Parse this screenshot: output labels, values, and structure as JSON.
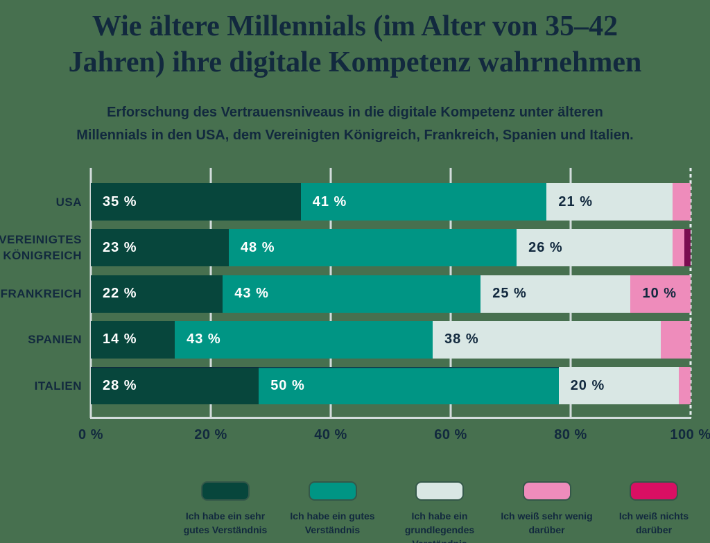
{
  "chart_data": {
    "type": "stacked_bar_horizontal",
    "title": "Wie ältere Millennials (im Alter von 35–42 Jahren) ihre digitale Kompetenz wahrnehmen",
    "title_lines": [
      "Wie ältere Millennials (im Alter von 35–42",
      "Jahren) ihre digitale Kompetenz wahrnehmen"
    ],
    "subtitle": "Erforschung des Vertrauensniveaus in die digitale Kompetenz unter älteren Millennials in den USA, dem Vereinigten Königreich, Frankreich, Spanien und Italien.",
    "subtitle_lines": [
      "Erforschung des Vertrauensniveaus in die digitale Kompetenz unter älteren",
      "Millennials in den USA, dem Vereinigten Königreich, Frankreich, Spanien und Italien."
    ],
    "x_axis": {
      "min": 0,
      "max": 100,
      "tick_values": [
        0,
        20,
        40,
        60,
        80,
        100
      ],
      "ticks": [
        "0 %",
        "20 %",
        "40 %",
        "60 %",
        "80 %",
        "100 %"
      ]
    },
    "categories": [
      "USA",
      "VEREINIGTES KÖNIGREICH",
      "FRANKREICH",
      "SPANIEN",
      "ITALIEN"
    ],
    "legend": [
      {
        "label": "Ich habe ein sehr gutes Verständnis",
        "color": "#07463c"
      },
      {
        "label": "Ich habe ein gutes Verständnis",
        "color": "#009584"
      },
      {
        "label": "Ich habe ein grundlegendes Verständnis",
        "color": "#d9e7e4"
      },
      {
        "label": "Ich weiß sehr wenig darüber",
        "color": "#ee8cbb"
      },
      {
        "label": "Ich weiß nichts darüber",
        "color": "#d90f63"
      }
    ],
    "series": [
      {
        "name": "Ich habe ein sehr gutes Verständnis",
        "values": [
          35,
          23,
          22,
          14,
          28
        ]
      },
      {
        "name": "Ich habe ein gutes Verständnis",
        "values": [
          41,
          48,
          43,
          43,
          50
        ]
      },
      {
        "name": "Ich habe ein grundlegendes Verständnis",
        "values": [
          21,
          26,
          25,
          38,
          20
        ]
      },
      {
        "name": "Ich weiß sehr wenig darüber",
        "values": [
          3,
          2,
          10,
          5,
          2
        ]
      },
      {
        "name": "Ich weiß nichts darüber",
        "values": [
          0,
          1,
          0,
          0,
          0
        ]
      }
    ],
    "rows": [
      {
        "category": "USA",
        "segments": [
          {
            "value": 35,
            "label": "35 %",
            "color": "#07463c",
            "label_color": "#ffffff"
          },
          {
            "value": 41,
            "label": "41 %",
            "color": "#009584",
            "label_color": "#ffffff"
          },
          {
            "value": 21,
            "label": "21 %",
            "color": "#d9e7e4",
            "label_color": "#12293e"
          },
          {
            "value": 3,
            "label": "",
            "color": "#ee8cbb",
            "label_color": "#12293e"
          }
        ]
      },
      {
        "category": "VEREINIGTES KÖNIGREICH",
        "segments": [
          {
            "value": 23,
            "label": "23 %",
            "color": "#07463c",
            "label_color": "#ffffff"
          },
          {
            "value": 48,
            "label": "48 %",
            "color": "#009584",
            "label_color": "#ffffff"
          },
          {
            "value": 26,
            "label": "26 %",
            "color": "#d9e7e4",
            "label_color": "#12293e"
          },
          {
            "value": 2,
            "label": "",
            "color": "#ee8cbb",
            "label_color": "#12293e"
          },
          {
            "value": 1,
            "label": "",
            "color": "#7a0d50",
            "label_color": "#ffffff"
          }
        ]
      },
      {
        "category": "FRANKREICH",
        "segments": [
          {
            "value": 22,
            "label": "22 %",
            "color": "#07463c",
            "label_color": "#ffffff"
          },
          {
            "value": 43,
            "label": "43 %",
            "color": "#009584",
            "label_color": "#ffffff"
          },
          {
            "value": 25,
            "label": "25 %",
            "color": "#d9e7e4",
            "label_color": "#12293e"
          },
          {
            "value": 10,
            "label": "10 %",
            "color": "#ee8cbb",
            "label_color": "#12293e"
          }
        ]
      },
      {
        "category": "SPANIEN",
        "segments": [
          {
            "value": 14,
            "label": "14 %",
            "color": "#07463c",
            "label_color": "#ffffff"
          },
          {
            "value": 43,
            "label": "43 %",
            "color": "#009584",
            "label_color": "#ffffff"
          },
          {
            "value": 38,
            "label": "38 %",
            "color": "#d9e7e4",
            "label_color": "#12293e"
          },
          {
            "value": 5,
            "label": "",
            "color": "#ee8cbb",
            "label_color": "#12293e"
          }
        ]
      },
      {
        "category": "ITALIEN",
        "segments": [
          {
            "value": 28,
            "label": "28 %",
            "color": "#07463c",
            "label_color": "#ffffff"
          },
          {
            "value": 50,
            "label": "50 %",
            "color": "#009584",
            "label_color": "#ffffff"
          },
          {
            "value": 20,
            "label": "20 %",
            "color": "#d9e7e4",
            "label_color": "#12293e"
          },
          {
            "value": 2,
            "label": "",
            "color": "#ee8cbb",
            "label_color": "#12293e"
          }
        ]
      }
    ],
    "colors": {
      "background": "#47704f",
      "text": "#12293e",
      "gridline": "#d3dcdc"
    },
    "layout": {
      "grid": true,
      "legend_position": "bottom"
    }
  }
}
